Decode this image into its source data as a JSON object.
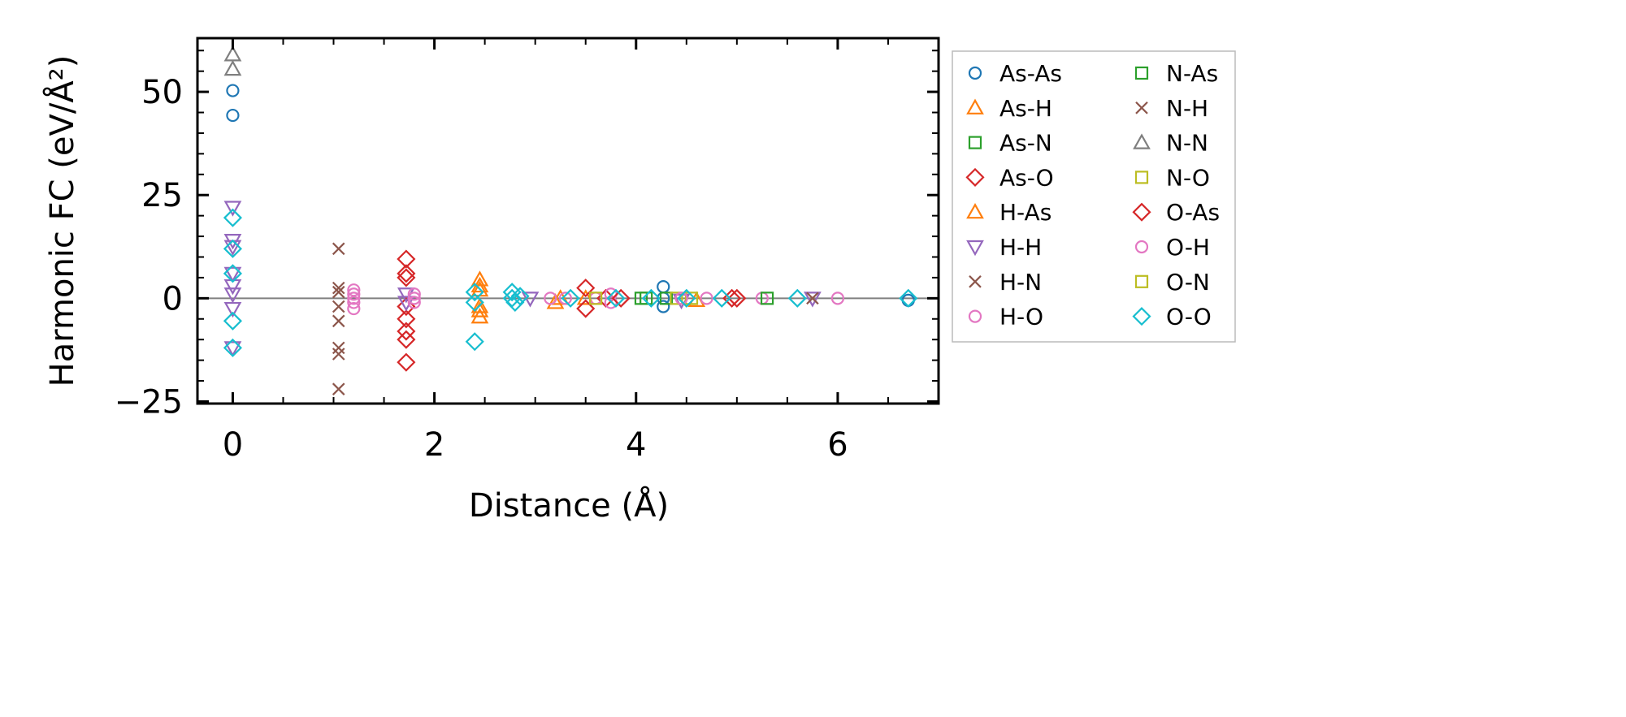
{
  "chart_data": {
    "type": "scatter",
    "title": "",
    "xlabel": "Distance (Å)",
    "ylabel": "Harmonic FC (eV/Å²)",
    "xlim": [
      -0.35,
      7.0
    ],
    "ylim": [
      -25.5,
      63
    ],
    "xticks": [
      0,
      2,
      4,
      6
    ],
    "xtick_labels": [
      "0",
      "2",
      "4",
      "6"
    ],
    "yticks": [
      -25,
      0,
      25,
      50
    ],
    "ytick_labels": [
      "−25",
      "0",
      "25",
      "50"
    ],
    "grid": false,
    "zero_line": true,
    "legend_placement": "outside-right",
    "series": [
      {
        "name": "As-As",
        "color": "#1f77b4",
        "marker": "circle",
        "x": [
          0,
          0,
          4.27,
          4.27,
          4.27,
          6.7
        ],
        "y": [
          50.3,
          44.3,
          2.8,
          -2,
          0,
          -0.5
        ]
      },
      {
        "name": "As-H",
        "color": "#ff7f0e",
        "marker": "triangle-up",
        "x": [
          2.45,
          2.45,
          2.45,
          2.45,
          3.2,
          3.5,
          4.6
        ],
        "y": [
          4.5,
          2,
          -4.5,
          -2,
          -1,
          0,
          -0.5
        ]
      },
      {
        "name": "As-N",
        "color": "#2ca02c",
        "marker": "square",
        "x": [
          4.3,
          4.05
        ],
        "y": [
          0,
          0
        ]
      },
      {
        "name": "As-O",
        "color": "#d62728",
        "marker": "diamond",
        "x": [
          1.72,
          1.72,
          1.72,
          1.72,
          1.72,
          1.72,
          1.72,
          1.72,
          3.5,
          3.5,
          3.7,
          5.0
        ],
        "y": [
          9.5,
          6,
          5,
          -5,
          -8,
          -10,
          -15.5,
          -2,
          2.5,
          -2.5,
          0,
          0
        ]
      },
      {
        "name": "H-As",
        "color": "#ff7f0e",
        "marker": "triangle-up",
        "x": [
          2.45,
          2.45,
          3.25
        ],
        "y": [
          3,
          -3,
          0
        ]
      },
      {
        "name": "H-H",
        "color": "#9467bd",
        "marker": "triangle-down",
        "x": [
          0,
          0,
          0,
          0,
          0,
          0,
          0,
          0,
          1.72,
          1.72,
          2.95,
          4.45,
          5.75
        ],
        "y": [
          22,
          14,
          12.5,
          6,
          3,
          1,
          -2.5,
          -12,
          1,
          -1,
          0,
          -0.5,
          0
        ]
      },
      {
        "name": "H-N",
        "color": "#8c564b",
        "marker": "x",
        "x": [
          1.05,
          1.05,
          1.05,
          1.05,
          1.05,
          1.05,
          1.05,
          1.05
        ],
        "y": [
          12,
          2.5,
          1.5,
          -2,
          -5.5,
          -12,
          -13.5,
          -22
        ]
      },
      {
        "name": "H-O",
        "color": "#e377c2",
        "marker": "circle",
        "x": [
          1.2,
          1.2,
          1.2,
          1.2,
          1.2,
          1.8,
          1.8,
          1.8,
          3.15,
          3.6,
          3.75,
          3.75,
          4.7,
          5.25,
          6.0
        ],
        "y": [
          2,
          1,
          0,
          -1,
          -2.5,
          1,
          0,
          -1,
          0,
          0,
          1,
          -1,
          0,
          0,
          0
        ]
      },
      {
        "name": "N-As",
        "color": "#2ca02c",
        "marker": "square",
        "x": [
          5.3,
          4.1
        ],
        "y": [
          0,
          0
        ]
      },
      {
        "name": "N-H",
        "color": "#8c564b",
        "marker": "x",
        "x": [
          5.75
        ],
        "y": [
          0
        ]
      },
      {
        "name": "N-N",
        "color": "#7f7f7f",
        "marker": "triangle-up",
        "x": [
          0,
          0
        ],
        "y": [
          59,
          55.5
        ]
      },
      {
        "name": "N-O",
        "color": "#bcbd22",
        "marker": "square",
        "x": [
          4.4,
          4.55
        ],
        "y": [
          0,
          0
        ]
      },
      {
        "name": "O-As",
        "color": "#d62728",
        "marker": "diamond",
        "x": [
          3.85,
          4.95
        ],
        "y": [
          0,
          0
        ]
      },
      {
        "name": "O-H",
        "color": "#e377c2",
        "marker": "circle",
        "x": [
          3.3,
          4.45
        ],
        "y": [
          0,
          0
        ]
      },
      {
        "name": "O-N",
        "color": "#bcbd22",
        "marker": "square",
        "x": [
          3.6
        ],
        "y": [
          0
        ]
      },
      {
        "name": "O-O",
        "color": "#17becf",
        "marker": "diamond",
        "x": [
          0,
          0,
          0,
          0,
          0,
          2.4,
          2.4,
          2.4,
          2.77,
          2.77,
          2.8,
          2.85,
          3.35,
          3.8,
          4.15,
          4.5,
          4.85,
          5.6,
          6.7
        ],
        "y": [
          19.5,
          12,
          6,
          -5.5,
          -12,
          1.5,
          -1,
          -10.5,
          1.5,
          0,
          -1,
          0.5,
          0,
          0,
          0,
          0,
          0,
          0,
          0
        ]
      }
    ]
  }
}
